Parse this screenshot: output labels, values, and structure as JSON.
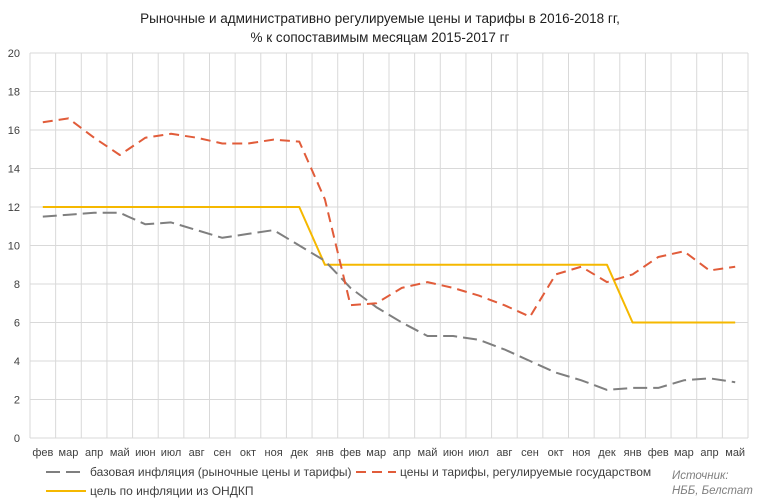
{
  "chart_data": {
    "type": "line",
    "title": "Рыночные и административно регулируемые цены и тарифы в 2016-2018 гг,",
    "subtitle": "% к сопоставимым месяцам 2015-2017 гг",
    "categories": [
      "фев",
      "мар",
      "апр",
      "май",
      "июн",
      "июл",
      "авг",
      "сен",
      "окт",
      "ноя",
      "дек",
      "янв",
      "фев",
      "мар",
      "апр",
      "май",
      "июн",
      "июл",
      "авг",
      "сен",
      "окт",
      "ноя",
      "дек",
      "янв",
      "фев",
      "мар",
      "апр",
      "май"
    ],
    "ylim": [
      0,
      20
    ],
    "yticks": [
      "0",
      "2",
      "4",
      "6",
      "8",
      "10",
      "12",
      "14",
      "16",
      "18",
      "20"
    ],
    "grid": true,
    "legend_position": "bottom",
    "series": [
      {
        "name": "базовая инфляция (рыночные цены и тарифы)",
        "color": "#7f7f7f",
        "dash": "long-dash",
        "values": [
          11.5,
          11.6,
          11.7,
          11.7,
          11.1,
          11.2,
          10.8,
          10.4,
          10.6,
          10.8,
          10.0,
          9.2,
          7.8,
          6.8,
          6.0,
          5.3,
          5.3,
          5.1,
          4.6,
          4.0,
          3.4,
          3.0,
          2.5,
          2.6,
          2.6,
          3.0,
          3.1,
          2.9
        ]
      },
      {
        "name": "цены и тарифы, регулируемые государством",
        "color": "#e15c3a",
        "dash": "dash",
        "values": [
          16.4,
          16.6,
          15.6,
          14.7,
          15.6,
          15.8,
          15.6,
          15.3,
          15.3,
          15.5,
          15.4,
          12.4,
          6.9,
          7.0,
          7.8,
          8.1,
          7.8,
          7.4,
          6.9,
          6.3,
          8.5,
          8.9,
          8.1,
          8.5,
          9.4,
          9.7,
          8.7,
          8.9
        ]
      },
      {
        "name": "цель по инфляции из ОНДКП",
        "color": "#f5b800",
        "dash": "solid",
        "values": [
          12,
          12,
          12,
          12,
          12,
          12,
          12,
          12,
          12,
          12,
          12,
          9,
          9,
          9,
          9,
          9,
          9,
          9,
          9,
          9,
          9,
          9,
          9,
          6,
          6,
          6,
          6,
          6
        ]
      }
    ]
  },
  "source_label": "Источник:",
  "source_name": "НББ, Белстат"
}
